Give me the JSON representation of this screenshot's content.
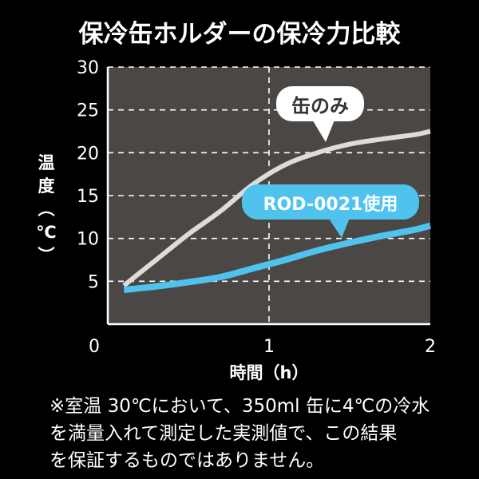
{
  "chart_data": {
    "type": "line",
    "title": "保冷缶ホルダーの保冷力比較",
    "xlabel": "時間（h）",
    "ylabel": "温度（℃）",
    "ylabel_chars": [
      "温",
      "度",
      "（",
      "℃",
      "）"
    ],
    "xlim": [
      0,
      2
    ],
    "ylim": [
      0,
      30
    ],
    "x_ticks": [
      "0",
      "1",
      "2"
    ],
    "y_ticks": [
      "5",
      "10",
      "15",
      "20",
      "25",
      "30"
    ],
    "grid": true,
    "series": [
      {
        "name": "缶のみ",
        "color": "#dcdcdc",
        "x": [
          0.1,
          0.3,
          0.5,
          0.7,
          0.9,
          1.1,
          1.3,
          1.5,
          1.7,
          1.9,
          2.0
        ],
        "y": [
          4.5,
          7.5,
          10.5,
          13.2,
          16.3,
          18.6,
          20.0,
          21.0,
          21.6,
          22.1,
          22.5
        ]
      },
      {
        "name": "ROD-0021使用",
        "color": "#4fc3ee",
        "x": [
          0.1,
          0.3,
          0.5,
          0.7,
          0.9,
          1.1,
          1.3,
          1.5,
          1.7,
          1.9,
          2.0
        ],
        "y": [
          4.0,
          4.4,
          4.9,
          5.5,
          6.5,
          7.5,
          8.6,
          9.5,
          10.3,
          11.0,
          11.5
        ]
      }
    ],
    "annotations": [
      "缶のみ",
      "ROD-0021使用"
    ]
  },
  "colors": {
    "page_bg": "#000000",
    "plot_bg": "#4b4745",
    "grid": "#ffffff",
    "axis": "#ffffff",
    "text": "#ffffff"
  },
  "note": {
    "lines": [
      "※室温 30℃において、350ml 缶に4℃の冷水",
      "を満量入れて測定した実測値で、この結果",
      "を保証するものではありません。"
    ]
  }
}
